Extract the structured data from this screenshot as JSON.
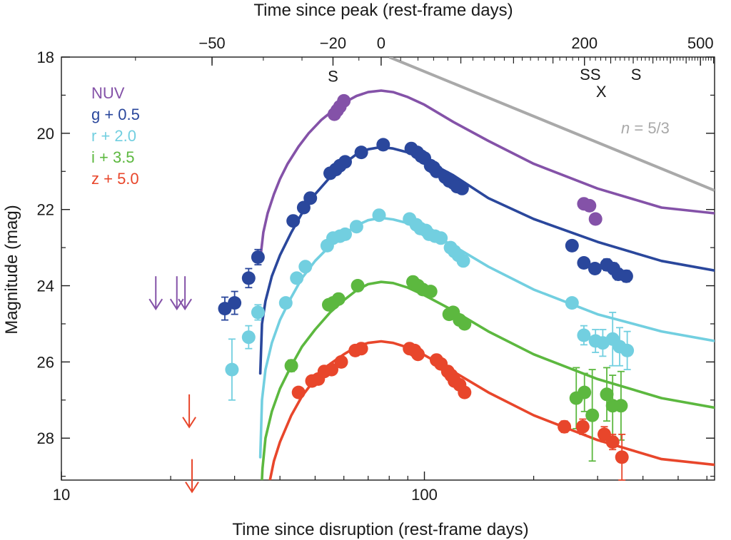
{
  "chart_data": {
    "type": "scatter",
    "title": "",
    "xlabel": "Time since disruption (rest-frame days)",
    "ylabel": "Magnitude (mag)",
    "top_xlabel": "Time since peak (rest-frame days)",
    "x_scale": "log",
    "xlim": [
      10,
      630
    ],
    "ylim": [
      29.1,
      18
    ],
    "y_inverted": true,
    "y_ticks": [
      "18",
      "20",
      "22",
      "24",
      "26",
      "28"
    ],
    "x_ticks": [
      {
        "value": 10,
        "label": "10"
      },
      {
        "value": 100,
        "label": "100"
      }
    ],
    "top_ticks": [
      {
        "value": -50,
        "label": "−50"
      },
      {
        "value": -20,
        "label": "−20"
      },
      {
        "value": 0,
        "label": "0"
      },
      {
        "value": 200,
        "label": "200"
      },
      {
        "value": 500,
        "label": "500"
      }
    ],
    "peak_day": 76,
    "grid": false,
    "legend_position": "top-left",
    "series": [
      {
        "name": "NUV",
        "color": "#8452a8",
        "points": [
          [
            56.5,
            19.5
          ],
          [
            57.5,
            19.4
          ],
          [
            58.5,
            19.3
          ],
          [
            60,
            19.15
          ],
          [
            275,
            21.85
          ],
          [
            285,
            21.9
          ],
          [
            296,
            22.25
          ]
        ],
        "upper_limits": [
          [
            18.2,
            24.2
          ],
          [
            20.8,
            24.2
          ],
          [
            21.9,
            24.2
          ]
        ],
        "model": [
          [
            35.3,
            23.3
          ],
          [
            36,
            22.6
          ],
          [
            37,
            22.1
          ],
          [
            38.5,
            21.6
          ],
          [
            40,
            21.2
          ],
          [
            42,
            20.8
          ],
          [
            45,
            20.35
          ],
          [
            48,
            20
          ],
          [
            52,
            19.65
          ],
          [
            56,
            19.4
          ],
          [
            60,
            19.2
          ],
          [
            65,
            19.02
          ],
          [
            70,
            18.92
          ],
          [
            76,
            18.88
          ],
          [
            82,
            18.92
          ],
          [
            90,
            19.05
          ],
          [
            100,
            19.25
          ],
          [
            120,
            19.7
          ],
          [
            150,
            20.2
          ],
          [
            200,
            20.8
          ],
          [
            300,
            21.45
          ],
          [
            450,
            21.95
          ],
          [
            630,
            22.1
          ]
        ]
      },
      {
        "name": "g + 0.5",
        "color": "#2a479c",
        "points": [
          [
            28.2,
            24.6
          ],
          [
            30,
            24.45
          ],
          [
            32.8,
            23.8
          ],
          [
            34.8,
            23.25
          ],
          [
            43.5,
            22.3
          ],
          [
            46.5,
            21.95
          ],
          [
            48.5,
            21.7
          ],
          [
            55,
            21.05
          ],
          [
            57,
            20.95
          ],
          [
            58.5,
            20.85
          ],
          [
            60.5,
            20.75
          ],
          [
            67,
            20.5
          ],
          [
            77,
            20.3
          ],
          [
            92,
            20.4
          ],
          [
            95.5,
            20.5
          ],
          [
            98,
            20.6
          ],
          [
            100,
            20.65
          ],
          [
            104,
            20.85
          ],
          [
            106,
            20.9
          ],
          [
            108,
            21
          ],
          [
            114,
            21.15
          ],
          [
            117,
            21.25
          ],
          [
            120,
            21.3
          ],
          [
            123,
            21.4
          ],
          [
            127,
            21.45
          ],
          [
            255,
            22.95
          ],
          [
            275,
            23.4
          ],
          [
            295,
            23.55
          ],
          [
            318,
            23.45
          ],
          [
            332,
            23.55
          ],
          [
            342,
            23.7
          ],
          [
            360,
            23.75
          ]
        ],
        "errors": [
          [
            28.2,
            0.3
          ],
          [
            30,
            0.3
          ],
          [
            32.8,
            0.25
          ],
          [
            34.8,
            0.2
          ],
          [
            295,
            0.1
          ],
          [
            318,
            0.15
          ],
          [
            332,
            0.15
          ],
          [
            342,
            0.15
          ],
          [
            360,
            0.15
          ]
        ],
        "model": [
          [
            35.3,
            26.3
          ],
          [
            35.7,
            25.0
          ],
          [
            36.5,
            24.4
          ],
          [
            38,
            23.75
          ],
          [
            40,
            23.2
          ],
          [
            43,
            22.6
          ],
          [
            46,
            22.1
          ],
          [
            50,
            21.6
          ],
          [
            55,
            21.15
          ],
          [
            60,
            20.8
          ],
          [
            65,
            20.55
          ],
          [
            70,
            20.42
          ],
          [
            76,
            20.36
          ],
          [
            82,
            20.4
          ],
          [
            90,
            20.5
          ],
          [
            100,
            20.7
          ],
          [
            120,
            21.1
          ],
          [
            150,
            21.7
          ],
          [
            200,
            22.25
          ],
          [
            300,
            22.85
          ],
          [
            450,
            23.35
          ],
          [
            630,
            23.6
          ]
        ]
      },
      {
        "name": "r + 2.0",
        "color": "#72cfe0",
        "points": [
          [
            29.5,
            26.2
          ],
          [
            32.8,
            25.35
          ],
          [
            34.8,
            24.7
          ],
          [
            41.5,
            24.45
          ],
          [
            44.5,
            23.8
          ],
          [
            47,
            23.5
          ],
          [
            54,
            22.95
          ],
          [
            56,
            22.75
          ],
          [
            58.5,
            22.7
          ],
          [
            60.5,
            22.65
          ],
          [
            65,
            22.45
          ],
          [
            75,
            22.15
          ],
          [
            91,
            22.25
          ],
          [
            95,
            22.4
          ],
          [
            97.5,
            22.5
          ],
          [
            101,
            22.55
          ],
          [
            103,
            22.65
          ],
          [
            107,
            22.7
          ],
          [
            111,
            22.75
          ],
          [
            118,
            23
          ],
          [
            121,
            23.1
          ],
          [
            124,
            23.2
          ],
          [
            128,
            23.35
          ],
          [
            255,
            24.45
          ],
          [
            275,
            25.3
          ],
          [
            296,
            25.45
          ],
          [
            310,
            25.5
          ],
          [
            330,
            25.4
          ],
          [
            345,
            25.6
          ],
          [
            362,
            25.7
          ]
        ],
        "errors": [
          [
            29.5,
            0.8
          ],
          [
            32.8,
            0.3
          ],
          [
            34.8,
            0.2
          ],
          [
            275,
            0.25
          ],
          [
            296,
            0.3
          ],
          [
            310,
            0.35
          ],
          [
            330,
            0.7
          ],
          [
            345,
            0.5
          ],
          [
            362,
            0.5
          ]
        ],
        "model": [
          [
            35.3,
            28.5
          ],
          [
            35.7,
            27.0
          ],
          [
            36.5,
            26.2
          ],
          [
            38,
            25.5
          ],
          [
            40,
            24.9
          ],
          [
            43,
            24.3
          ],
          [
            46,
            23.8
          ],
          [
            50,
            23.35
          ],
          [
            55,
            22.95
          ],
          [
            60,
            22.65
          ],
          [
            65,
            22.42
          ],
          [
            70,
            22.28
          ],
          [
            76,
            22.22
          ],
          [
            82,
            22.26
          ],
          [
            90,
            22.36
          ],
          [
            100,
            22.55
          ],
          [
            120,
            22.95
          ],
          [
            150,
            23.5
          ],
          [
            200,
            24.1
          ],
          [
            300,
            24.75
          ],
          [
            450,
            25.2
          ],
          [
            630,
            25.45
          ]
        ]
      },
      {
        "name": "i + 3.5",
        "color": "#5cb83f",
        "points": [
          [
            43,
            26.1
          ],
          [
            54.5,
            24.5
          ],
          [
            56,
            24.45
          ],
          [
            58,
            24.35
          ],
          [
            65.5,
            24
          ],
          [
            93,
            23.9
          ],
          [
            96,
            24
          ],
          [
            99,
            24.1
          ],
          [
            104,
            24.15
          ],
          [
            117,
            24.75
          ],
          [
            120,
            24.7
          ],
          [
            125,
            24.9
          ],
          [
            129,
            25
          ],
          [
            262,
            26.95
          ],
          [
            276,
            26.8
          ],
          [
            290,
            27.4
          ],
          [
            318,
            26.85
          ],
          [
            330,
            27.15
          ],
          [
            348,
            27.15
          ]
        ],
        "errors": [
          [
            43,
            0.15
          ],
          [
            262,
            0.8
          ],
          [
            276,
            0.5
          ],
          [
            290,
            1.2
          ],
          [
            318,
            0.7
          ],
          [
            330,
            0.8
          ],
          [
            348,
            0.9
          ]
        ],
        "model": [
          [
            35.3,
            30.0
          ],
          [
            35.8,
            28.8
          ],
          [
            36.5,
            28.0
          ],
          [
            38,
            27.3
          ],
          [
            40,
            26.7
          ],
          [
            43,
            26.1
          ],
          [
            46,
            25.6
          ],
          [
            50,
            25.15
          ],
          [
            55,
            24.7
          ],
          [
            60,
            24.38
          ],
          [
            65,
            24.12
          ],
          [
            70,
            23.96
          ],
          [
            76,
            23.9
          ],
          [
            82,
            23.93
          ],
          [
            90,
            24.05
          ],
          [
            100,
            24.25
          ],
          [
            120,
            24.65
          ],
          [
            150,
            25.2
          ],
          [
            200,
            25.8
          ],
          [
            300,
            26.45
          ],
          [
            450,
            26.95
          ],
          [
            630,
            27.2
          ]
        ]
      },
      {
        "name": "z + 5.0",
        "color": "#e8462b",
        "points": [
          [
            45,
            26.8
          ],
          [
            49,
            26.5
          ],
          [
            51,
            26.45
          ],
          [
            53,
            26.25
          ],
          [
            55.5,
            26.2
          ],
          [
            59,
            26
          ],
          [
            64.5,
            25.7
          ],
          [
            67,
            25.65
          ],
          [
            91,
            25.65
          ],
          [
            94,
            25.7
          ],
          [
            96,
            25.8
          ],
          [
            108,
            25.95
          ],
          [
            111,
            26.05
          ],
          [
            116,
            26.25
          ],
          [
            118.5,
            26.35
          ],
          [
            121,
            26.5
          ],
          [
            125,
            26.6
          ],
          [
            129,
            26.8
          ],
          [
            243,
            27.7
          ],
          [
            273,
            27.7
          ],
          [
            313,
            27.9
          ],
          [
            330,
            28.1
          ],
          [
            350,
            28.5
          ]
        ],
        "errors": [
          [
            243,
            0.15
          ],
          [
            273,
            0.2
          ],
          [
            313,
            0.2
          ],
          [
            330,
            0.2
          ],
          [
            350,
            0.6
          ]
        ],
        "upper_limits": [
          [
            22.5,
            27.3
          ],
          [
            22.9,
            29.0
          ]
        ],
        "model": [
          [
            36,
            31.0
          ],
          [
            37,
            29.4
          ],
          [
            38.5,
            28.6
          ],
          [
            40,
            28.1
          ],
          [
            43,
            27.4
          ],
          [
            46,
            26.9
          ],
          [
            50,
            26.45
          ],
          [
            55,
            26.05
          ],
          [
            60,
            25.8
          ],
          [
            65,
            25.6
          ],
          [
            70,
            25.5
          ],
          [
            76,
            25.46
          ],
          [
            82,
            25.5
          ],
          [
            90,
            25.62
          ],
          [
            100,
            25.82
          ],
          [
            120,
            26.25
          ],
          [
            150,
            26.8
          ],
          [
            200,
            27.4
          ],
          [
            300,
            28.05
          ],
          [
            450,
            28.55
          ],
          [
            630,
            28.7
          ]
        ]
      }
    ],
    "reference_line": {
      "label_prefix": "n",
      "label_value": " = 5/3",
      "color": "#a9a9a9",
      "points": [
        [
          80,
          18
        ],
        [
          630,
          21.5
        ]
      ]
    },
    "markers": [
      {
        "text": "S",
        "x": 56,
        "y": 18.5
      },
      {
        "text": "S",
        "x": 277,
        "y": 18.45
      },
      {
        "text": "S",
        "x": 296,
        "y": 18.45
      },
      {
        "text": "X",
        "x": 307,
        "y": 18.9
      },
      {
        "text": "S",
        "x": 383,
        "y": 18.45
      }
    ],
    "units": {
      "top_axis": "rest-frame days"
    }
  }
}
